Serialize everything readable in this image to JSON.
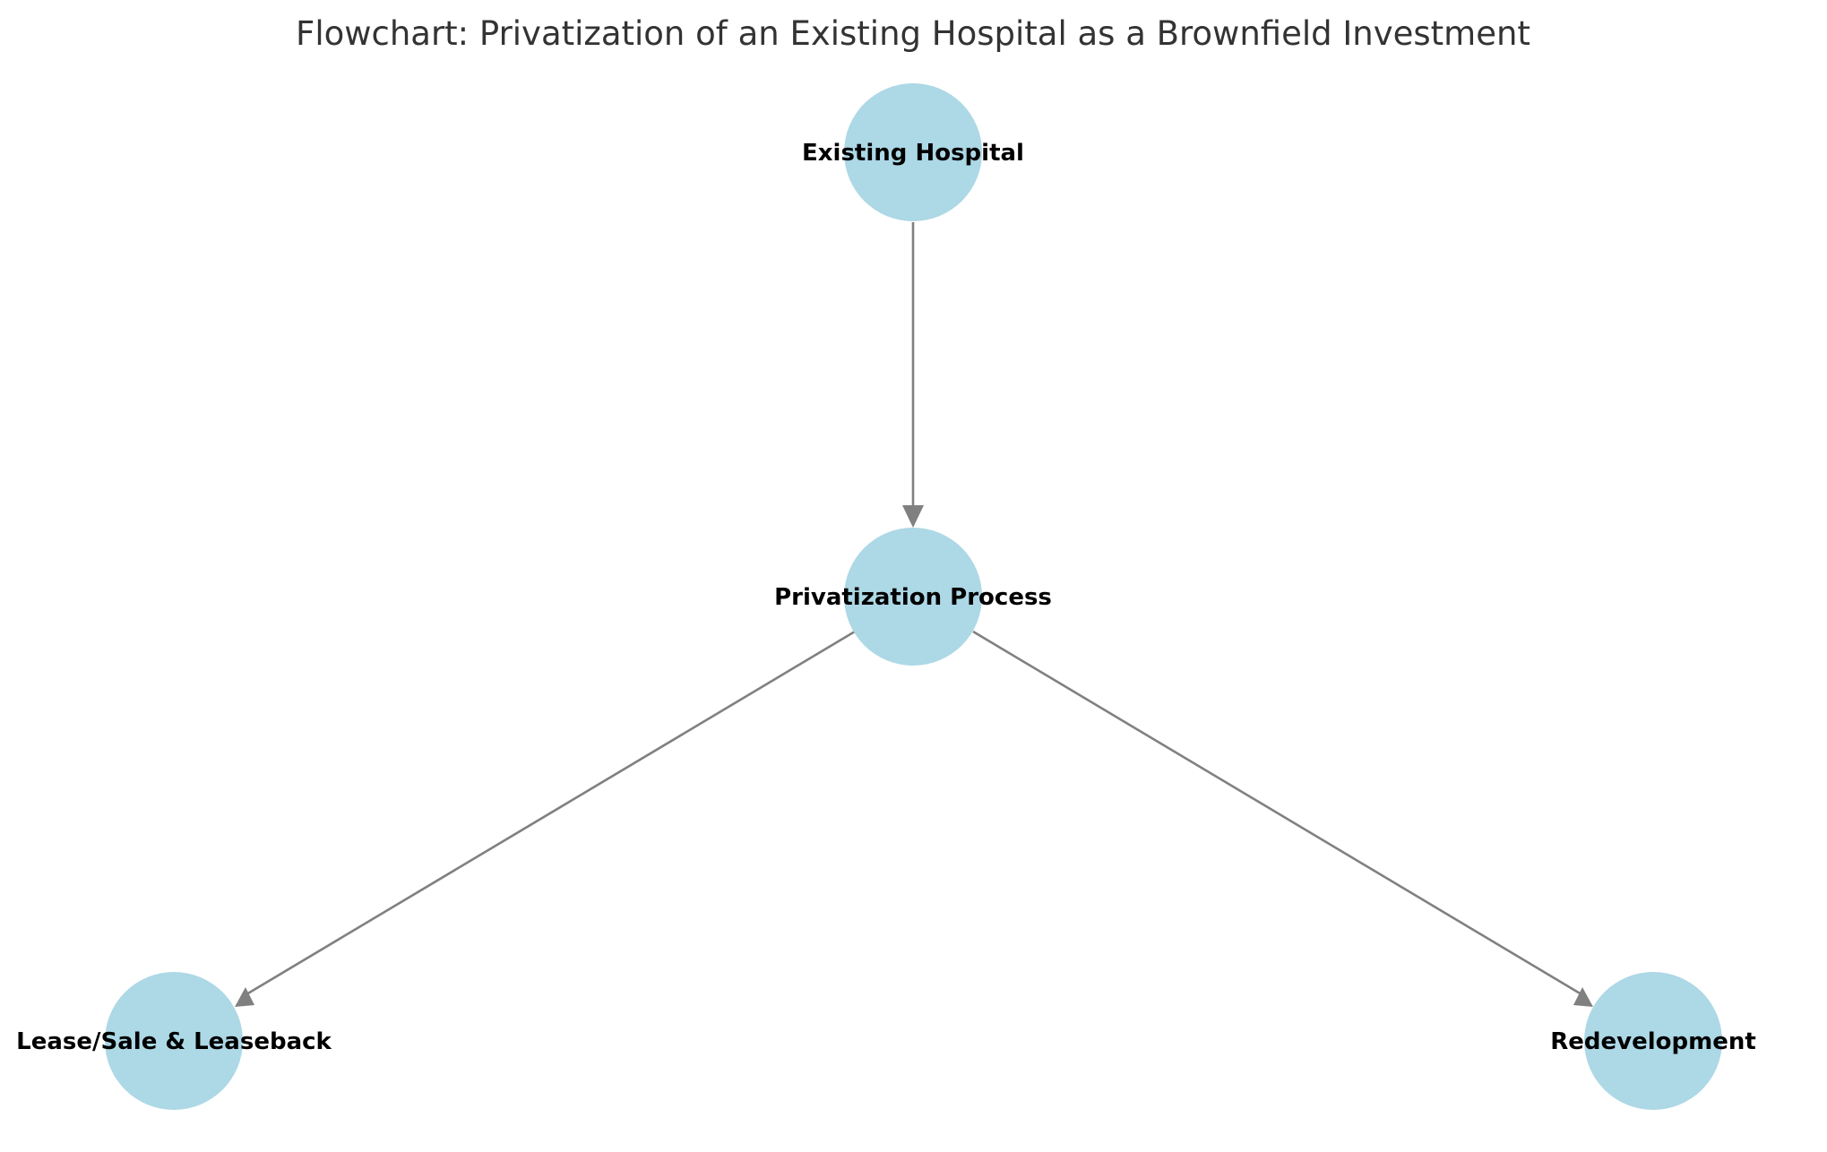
{
  "title": "Flowchart: Privatization of an Existing Hospital as a Brownfield Investment",
  "colors": {
    "node_fill": "#add8e6",
    "edge": "#808080",
    "title_text": "#333333",
    "label_text": "#000000"
  },
  "nodes": [
    {
      "id": "existing",
      "label": "Existing Hospital"
    },
    {
      "id": "process",
      "label": "Privatization Process"
    },
    {
      "id": "lease",
      "label": "Lease/Sale & Leaseback"
    },
    {
      "id": "redev",
      "label": "Redevelopment"
    }
  ],
  "edges": [
    {
      "from": "existing",
      "to": "process"
    },
    {
      "from": "process",
      "to": "lease"
    },
    {
      "from": "process",
      "to": "redev"
    }
  ]
}
